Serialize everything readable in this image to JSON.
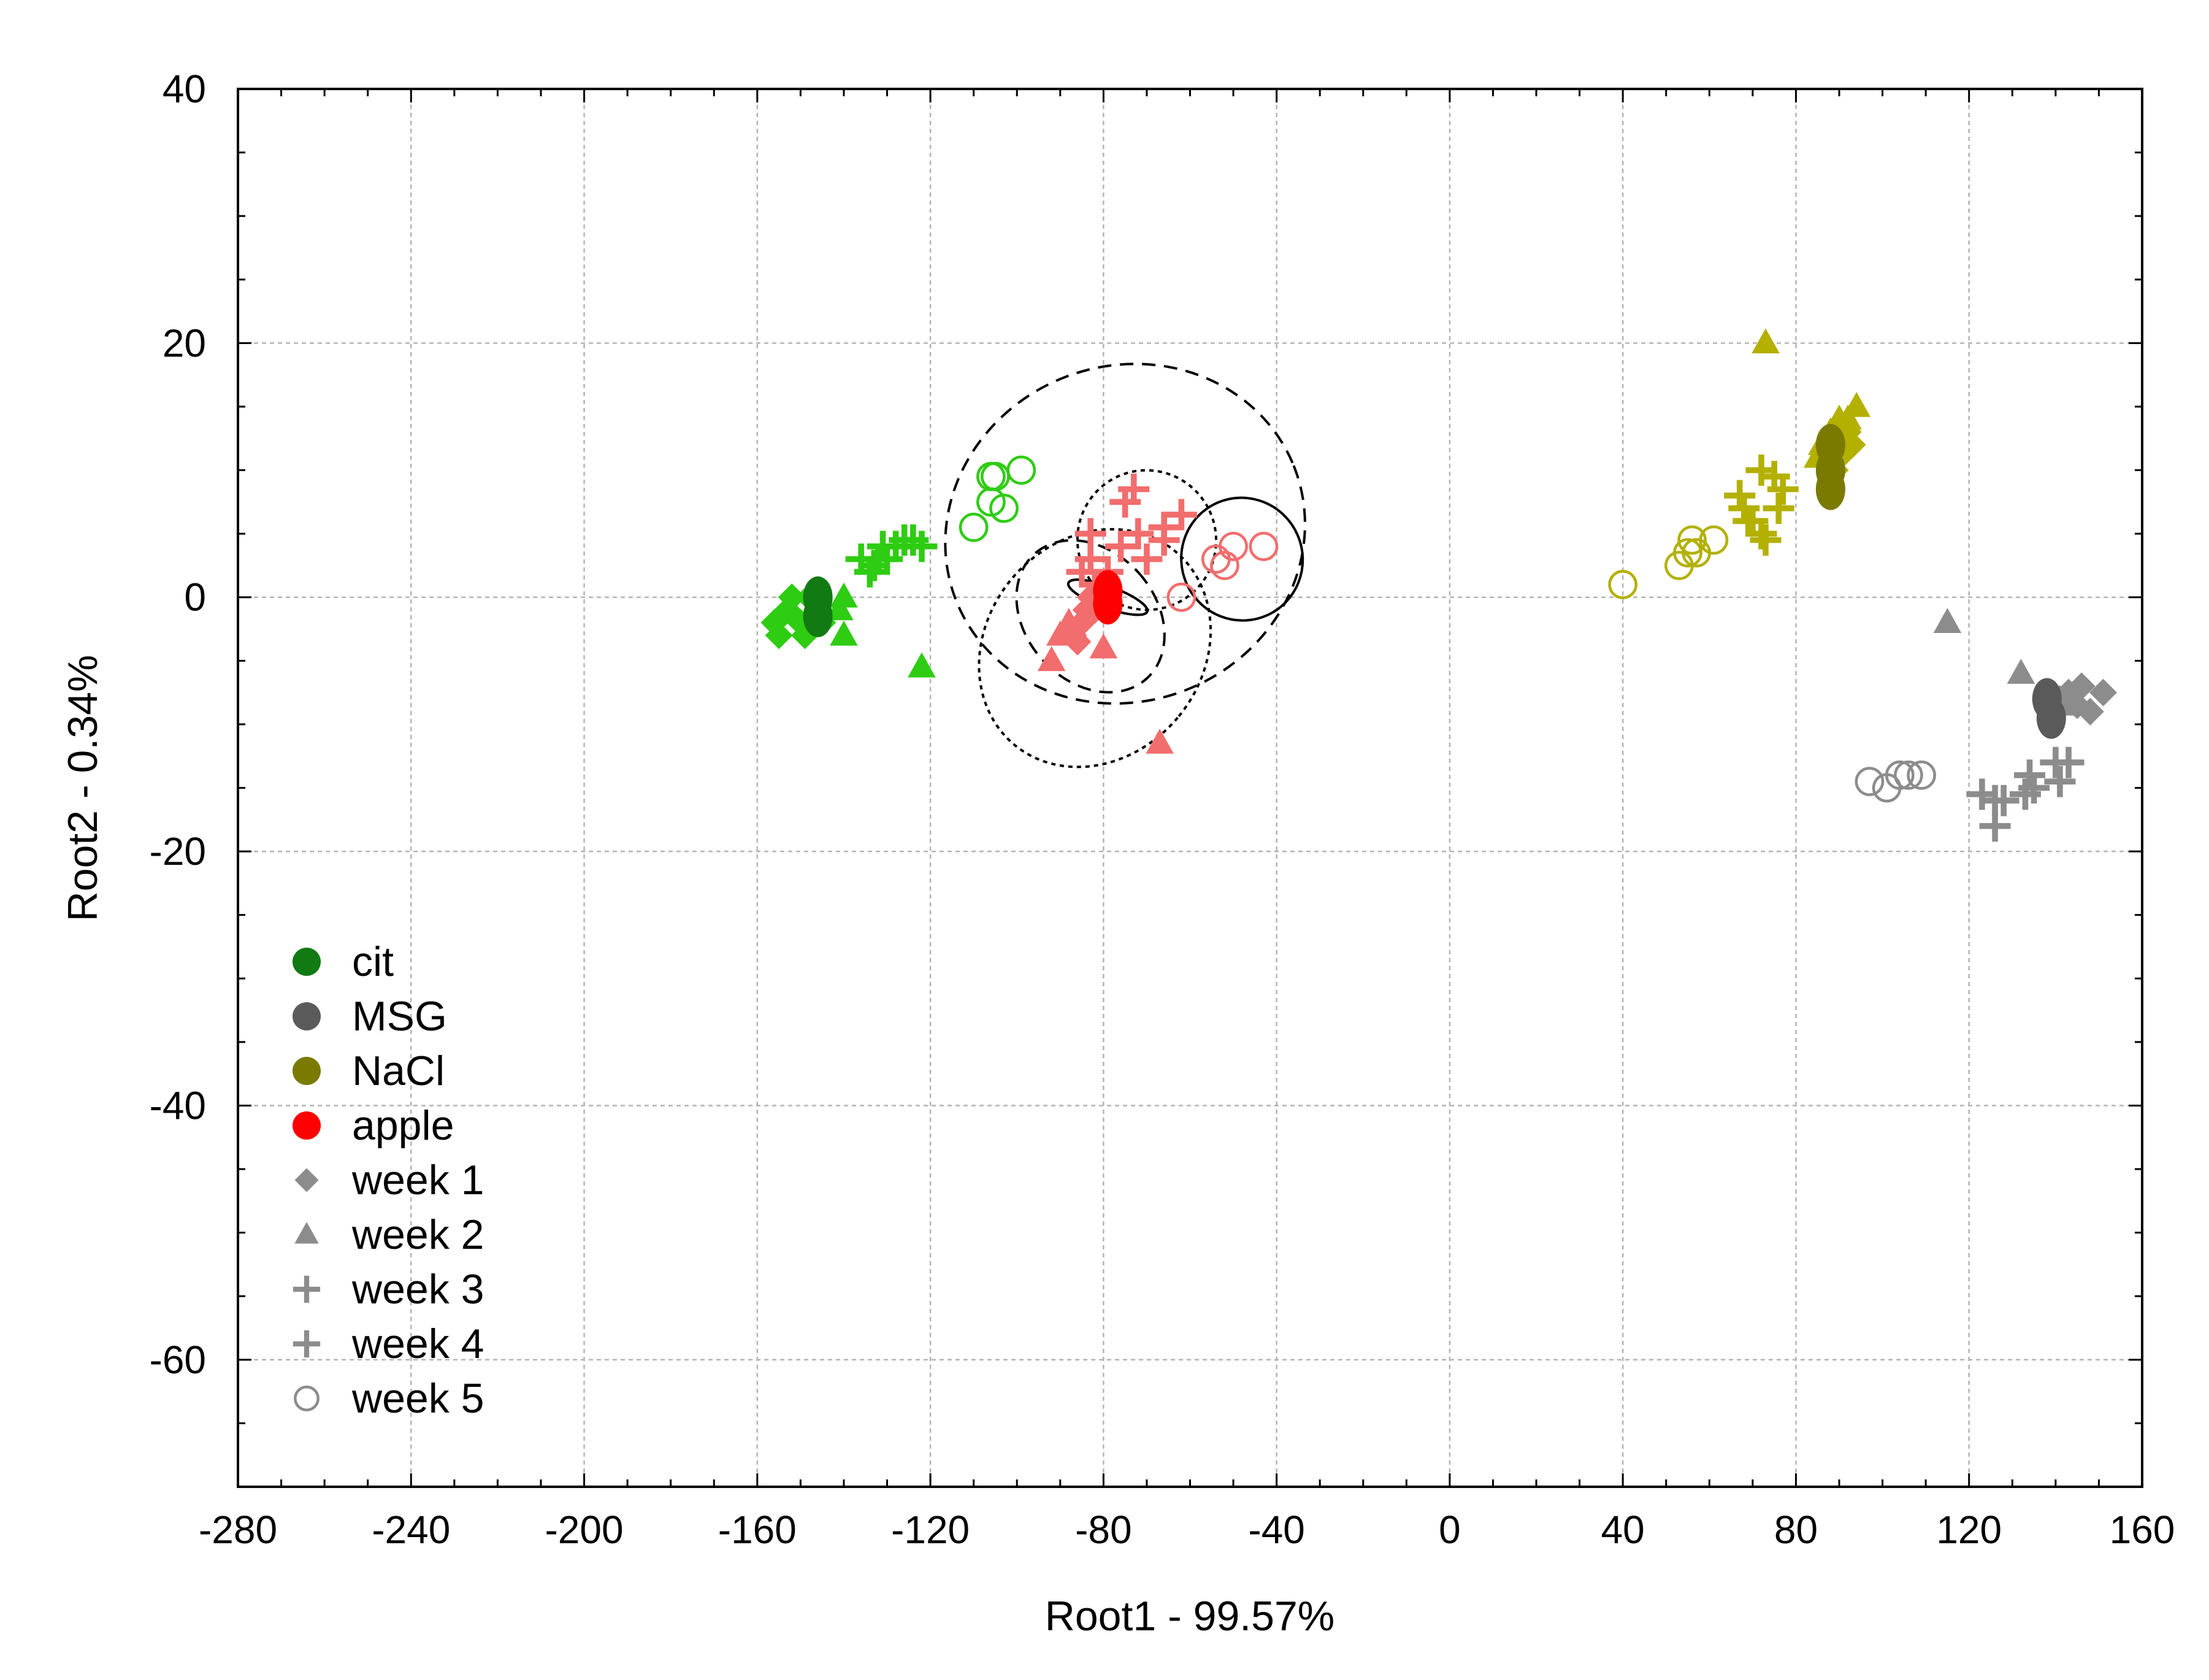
{
  "chart_data": {
    "type": "scatter",
    "title": "",
    "xlabel": "Root1 - 99.57%",
    "ylabel": "Root2 - 0.34%",
    "xlim": [
      -280,
      160
    ],
    "ylim": [
      -70,
      40
    ],
    "xticks": [
      -280,
      -240,
      -200,
      -160,
      -120,
      -80,
      -40,
      0,
      40,
      80,
      120,
      160
    ],
    "yticks": [
      40,
      20,
      0,
      -20,
      -40,
      -60
    ],
    "x_minor_step": 10,
    "y_minor_step": 5,
    "grid": true,
    "legend_position": "lower-left",
    "colors": {
      "cit": "#2ecc12",
      "cit_centroid": "#127a12",
      "MSG": "#8c8c8c",
      "MSG_centroid": "#5a5a5a",
      "NaCl": "#b3b000",
      "NaCl_centroid": "#7a7a00",
      "apple": "#f26d6d",
      "apple_centroid": "#ff0000",
      "legend_week": "#8c8c8c"
    },
    "legend": [
      {
        "label": "cit",
        "marker": "dot",
        "color": "#127a12"
      },
      {
        "label": "MSG",
        "marker": "dot",
        "color": "#5a5a5a"
      },
      {
        "label": "NaCl",
        "marker": "dot",
        "color": "#7a7a00"
      },
      {
        "label": "apple",
        "marker": "dot",
        "color": "#ff0000"
      },
      {
        "label": "week 1",
        "marker": "diamond",
        "color": "#8c8c8c"
      },
      {
        "label": "week 2",
        "marker": "triangle",
        "color": "#8c8c8c"
      },
      {
        "label": "week 3",
        "marker": "plus",
        "color": "#8c8c8c"
      },
      {
        "label": "week 4",
        "marker": "plus",
        "color": "#8c8c8c"
      },
      {
        "label": "week 5",
        "marker": "circle-open",
        "color": "#8c8c8c"
      }
    ],
    "series": [
      {
        "group": "cit",
        "week": 1,
        "marker": "diamond",
        "color": "#2ecc12",
        "points": [
          [
            -156,
            -2
          ],
          [
            -155,
            -3
          ],
          [
            -153,
            -1
          ],
          [
            -150,
            -2
          ],
          [
            -148,
            0
          ],
          [
            -146,
            -1
          ],
          [
            -152,
            0
          ],
          [
            -149,
            -3
          ],
          [
            -145,
            -2
          ]
        ]
      },
      {
        "group": "cit",
        "week": 2,
        "marker": "triangle",
        "color": "#2ecc12",
        "points": [
          [
            -140,
            0
          ],
          [
            -141,
            -1
          ],
          [
            -140,
            -3
          ],
          [
            -122,
            -5.5
          ],
          [
            -145,
            -1
          ]
        ]
      },
      {
        "group": "cit",
        "week": 3,
        "marker": "plus",
        "color": "#2ecc12",
        "points": [
          [
            -136,
            3
          ],
          [
            -134,
            2
          ],
          [
            -132,
            3
          ],
          [
            -131,
            4
          ],
          [
            -130,
            3
          ]
        ]
      },
      {
        "group": "cit",
        "week": 4,
        "marker": "plus",
        "color": "#2ecc12",
        "points": [
          [
            -128,
            4
          ],
          [
            -126,
            4.5
          ],
          [
            -124,
            4.5
          ],
          [
            -122,
            4
          ],
          [
            -133,
            2.5
          ]
        ]
      },
      {
        "group": "cit",
        "week": 5,
        "marker": "circle-open",
        "color": "#2ecc12",
        "points": [
          [
            -106,
            9.5
          ],
          [
            -105,
            9.5
          ],
          [
            -99,
            10
          ],
          [
            -106,
            7.5
          ],
          [
            -103,
            7
          ],
          [
            -110,
            5.5
          ]
        ]
      },
      {
        "group": "cit",
        "marker": "centroid",
        "color": "#127a12",
        "points": [
          [
            -146,
            -1.5
          ],
          [
            -146,
            0
          ]
        ]
      },
      {
        "group": "apple",
        "week": 1,
        "marker": "diamond",
        "color": "#f26d6d",
        "points": [
          [
            -87,
            -3
          ],
          [
            -85,
            -2
          ],
          [
            -84,
            -1
          ],
          [
            -83,
            0
          ],
          [
            -82,
            -1
          ],
          [
            -86,
            -3.5
          ]
        ]
      },
      {
        "group": "apple",
        "week": 2,
        "marker": "triangle",
        "color": "#f26d6d",
        "points": [
          [
            -92,
            -5
          ],
          [
            -90,
            -3
          ],
          [
            -88,
            -2
          ],
          [
            -80,
            -4
          ],
          [
            -67,
            -11.5
          ]
        ]
      },
      {
        "group": "apple",
        "week": 3,
        "marker": "plus",
        "color": "#f26d6d",
        "points": [
          [
            -83,
            5
          ],
          [
            -85,
            2
          ],
          [
            -83,
            3
          ],
          [
            -79,
            2
          ],
          [
            -82,
            1
          ]
        ]
      },
      {
        "group": "apple",
        "week": 4,
        "marker": "plus",
        "color": "#f26d6d",
        "points": [
          [
            -75,
            7.5
          ],
          [
            -73,
            8.5
          ],
          [
            -66,
            5.5
          ],
          [
            -62,
            6.5
          ],
          [
            -72,
            5
          ],
          [
            -76,
            4
          ],
          [
            -70,
            3
          ],
          [
            -66,
            4.5
          ]
        ]
      },
      {
        "group": "apple",
        "week": 5,
        "marker": "circle-open",
        "color": "#f26d6d",
        "points": [
          [
            -62,
            0
          ],
          [
            -54,
            3
          ],
          [
            -52,
            2.5
          ],
          [
            -50,
            4
          ],
          [
            -43,
            4
          ]
        ]
      },
      {
        "group": "apple",
        "marker": "centroid",
        "color": "#ff0000",
        "points": [
          [
            -79,
            -0.5
          ],
          [
            -79,
            0.5
          ]
        ]
      },
      {
        "group": "NaCl",
        "week": 1,
        "marker": "diamond",
        "color": "#b3b000",
        "points": [
          [
            90,
            11
          ],
          [
            91,
            12
          ],
          [
            92,
            13
          ],
          [
            89,
            10
          ],
          [
            93,
            12
          ]
        ]
      },
      {
        "group": "NaCl",
        "week": 2,
        "marker": "triangle",
        "color": "#b3b000",
        "points": [
          [
            73,
            20
          ],
          [
            85,
            11
          ],
          [
            86,
            12
          ],
          [
            88,
            13
          ],
          [
            90,
            14
          ],
          [
            94,
            15
          ],
          [
            92,
            14
          ]
        ]
      },
      {
        "group": "NaCl",
        "week": 3,
        "marker": "plus",
        "color": "#b3b000",
        "points": [
          [
            67,
            8
          ],
          [
            69,
            6
          ],
          [
            72,
            5
          ],
          [
            76,
            7
          ],
          [
            70,
            6
          ]
        ]
      },
      {
        "group": "NaCl",
        "week": 4,
        "marker": "plus",
        "color": "#b3b000",
        "points": [
          [
            72,
            10
          ],
          [
            75,
            9.5
          ],
          [
            77,
            8.5
          ],
          [
            73,
            4.5
          ],
          [
            68,
            7
          ]
        ]
      },
      {
        "group": "NaCl",
        "week": 5,
        "marker": "circle-open",
        "color": "#b3b000",
        "points": [
          [
            40,
            1
          ],
          [
            53,
            2.5
          ],
          [
            55,
            3.5
          ],
          [
            56,
            4.5
          ],
          [
            57,
            3.5
          ],
          [
            61,
            4.5
          ]
        ]
      },
      {
        "group": "NaCl",
        "marker": "centroid",
        "color": "#7a7a00",
        "points": [
          [
            88,
            8.5
          ],
          [
            88,
            10
          ],
          [
            88,
            12
          ]
        ]
      },
      {
        "group": "MSG",
        "week": 1,
        "marker": "diamond",
        "color": "#8c8c8c",
        "points": [
          [
            143,
            -7.5
          ],
          [
            146,
            -7
          ],
          [
            148,
            -9
          ],
          [
            151,
            -7.5
          ],
          [
            141,
            -8
          ],
          [
            145,
            -8.5
          ]
        ]
      },
      {
        "group": "MSG",
        "week": 2,
        "marker": "triangle",
        "color": "#8c8c8c",
        "points": [
          [
            115,
            -2
          ],
          [
            132,
            -6
          ],
          [
            139,
            -9
          ],
          [
            141,
            -8.5
          ]
        ]
      },
      {
        "group": "MSG",
        "week": 3,
        "marker": "plus",
        "color": "#8c8c8c",
        "points": [
          [
            123,
            -15.5
          ],
          [
            126,
            -16
          ],
          [
            126,
            -18
          ],
          [
            133,
            -15.5
          ],
          [
            135,
            -15
          ]
        ]
      },
      {
        "group": "MSG",
        "week": 4,
        "marker": "plus",
        "color": "#8c8c8c",
        "points": [
          [
            134,
            -14
          ],
          [
            140,
            -13
          ],
          [
            143,
            -13
          ],
          [
            141,
            -14.5
          ],
          [
            128,
            -16
          ]
        ]
      },
      {
        "group": "MSG",
        "week": 5,
        "marker": "circle-open",
        "color": "#8c8c8c",
        "points": [
          [
            97,
            -14.5
          ],
          [
            101,
            -15
          ],
          [
            104,
            -14
          ],
          [
            106,
            -14
          ],
          [
            109,
            -14
          ]
        ]
      },
      {
        "group": "MSG",
        "marker": "centroid",
        "color": "#5a5a5a",
        "points": [
          [
            138,
            -8
          ],
          [
            139,
            -9.5
          ]
        ]
      }
    ],
    "ellipses": [
      {
        "cx": -75,
        "cy": 5,
        "rx": 42,
        "ry": 6,
        "angle_deg": 22,
        "style": "dashed"
      },
      {
        "cx": -70,
        "cy": 4.5,
        "rx": 16,
        "ry": 2.5,
        "angle_deg": 25,
        "style": "dotted"
      },
      {
        "cx": -48,
        "cy": 3,
        "rx": 14,
        "ry": 2.2,
        "angle_deg": 24,
        "style": "solid"
      },
      {
        "cx": -82,
        "cy": -4,
        "rx": 25,
        "ry": 4.5,
        "angle_deg": -40,
        "style": "dotted"
      },
      {
        "cx": -83,
        "cy": -1.5,
        "rx": 15,
        "ry": 3,
        "angle_deg": 42,
        "style": "dashed"
      },
      {
        "cx": -79,
        "cy": 0,
        "rx": 2.5,
        "ry": 1.5,
        "angle_deg": 70,
        "style": "solid"
      }
    ]
  }
}
